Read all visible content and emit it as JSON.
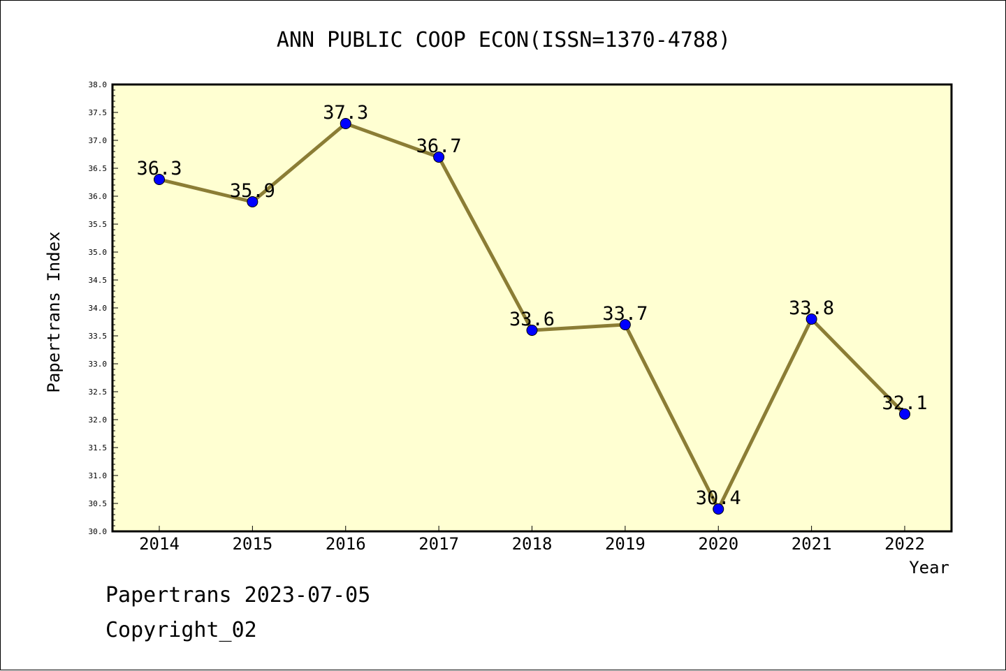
{
  "chart_data": {
    "type": "line",
    "title": "ANN PUBLIC COOP ECON(ISSN=1370-4788)",
    "xlabel": "Year",
    "ylabel": "Papertrans Index",
    "categories": [
      "2014",
      "2015",
      "2016",
      "2017",
      "2018",
      "2019",
      "2020",
      "2021",
      "2022"
    ],
    "series": [
      {
        "values": [
          36.3,
          35.9,
          37.3,
          36.7,
          33.6,
          33.7,
          30.4,
          33.8,
          32.1
        ],
        "labels": [
          "36.3",
          "35.9",
          "37.3",
          "36.7",
          "33.6",
          "33.7",
          "30.4",
          "33.8",
          "32.1"
        ]
      }
    ],
    "ylim": [
      30.0,
      38.0
    ],
    "yticks": [
      "30.0",
      "30.5",
      "31.0",
      "31.5",
      "32.0",
      "32.5",
      "33.0",
      "33.5",
      "34.0",
      "34.5",
      "35.0",
      "35.5",
      "36.0",
      "36.5",
      "37.0",
      "37.5",
      "38.0"
    ],
    "grid": false,
    "colors": {
      "plot_background": "#ffffd2",
      "line": "#8b7d35",
      "marker": "#0000ff"
    }
  },
  "footer": {
    "date_line": "Papertrans 2023-07-05",
    "copyright_line": "Copyright_02"
  }
}
